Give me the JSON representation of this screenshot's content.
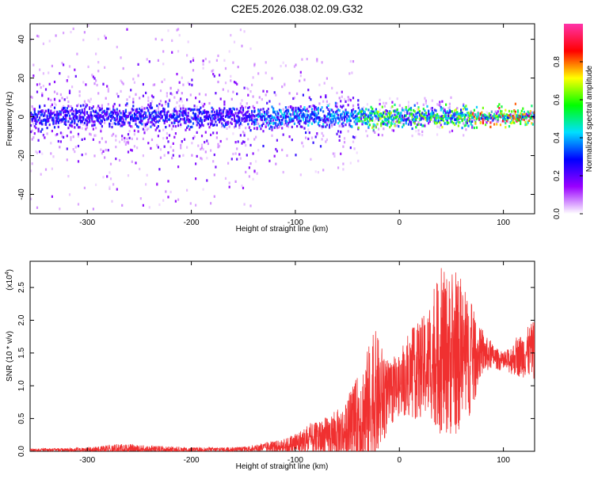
{
  "title": "C2E5.2026.038.02.09.G32",
  "chart_data": [
    {
      "type": "heatmap",
      "xlabel": "Height of straight line (km)",
      "ylabel": "Frequency (Hz)",
      "xlim": [
        -355,
        130
      ],
      "ylim": [
        -50,
        48
      ],
      "x_ticks": [
        -300,
        -200,
        -100,
        0,
        100
      ],
      "x_tick_labels": [
        "-300",
        "-200",
        "-100",
        "0",
        "100"
      ],
      "y_ticks": [
        -40,
        -20,
        0,
        20,
        40
      ],
      "y_tick_labels": [
        "-40",
        "-20",
        "0",
        "20",
        "40"
      ],
      "colorbar": {
        "label": "Normalized spectral amplitude",
        "range": [
          0,
          1
        ],
        "ticks": [
          0.0,
          0.2,
          0.4,
          0.6,
          0.8
        ],
        "tick_labels": [
          "0.0",
          "0.2",
          "0.4",
          "0.6",
          "0.8"
        ],
        "colors": [
          "#ffffff",
          "#9a00ff",
          "#0000ff",
          "#00e0ff",
          "#00ff00",
          "#ffff00",
          "#ff0000",
          "#ff33aa"
        ]
      },
      "segments": [
        {
          "x_range": [
            -355,
            -140
          ],
          "max_amplitude": 0.35,
          "spread_hz": 48
        },
        {
          "x_range": [
            -140,
            -40
          ],
          "max_amplitude": 0.45,
          "spread_hz": 30
        },
        {
          "x_range": [
            -40,
            70
          ],
          "max_amplitude": 0.7,
          "spread_hz": 10
        },
        {
          "x_range": [
            70,
            130
          ],
          "max_amplitude": 0.9,
          "spread_hz": 3
        }
      ]
    },
    {
      "type": "line",
      "xlabel": "Height of straight line (km)",
      "ylabel": "SNR (10 * v/v)",
      "multiplier_label": "(x10",
      "multiplier_exp": "4",
      "multiplier_close": ")",
      "xlim": [
        -355,
        130
      ],
      "ylim": [
        0,
        2.9
      ],
      "x_ticks": [
        -300,
        -200,
        -100,
        0,
        100
      ],
      "x_tick_labels": [
        "-300",
        "-200",
        "-100",
        "0",
        "100"
      ],
      "y_ticks": [
        0.0,
        0.5,
        1.0,
        1.5,
        2.0,
        2.5
      ],
      "y_tick_labels": [
        "0.0",
        "0.5",
        "1.0",
        "1.5",
        "2.0",
        "2.5"
      ],
      "color": "#f03030",
      "envelope": [
        {
          "x": -355,
          "mean": 0.02,
          "max": 0.04
        },
        {
          "x": -300,
          "mean": 0.02,
          "max": 0.06
        },
        {
          "x": -270,
          "mean": 0.03,
          "max": 0.12
        },
        {
          "x": -200,
          "mean": 0.02,
          "max": 0.06
        },
        {
          "x": -150,
          "mean": 0.03,
          "max": 0.07
        },
        {
          "x": -110,
          "mean": 0.08,
          "max": 0.2
        },
        {
          "x": -90,
          "mean": 0.15,
          "max": 0.4
        },
        {
          "x": -70,
          "mean": 0.2,
          "max": 0.55
        },
        {
          "x": -50,
          "mean": 0.3,
          "max": 0.8
        },
        {
          "x": -30,
          "mean": 0.6,
          "max": 1.7
        },
        {
          "x": -25,
          "mean": 0.8,
          "max": 2.05
        },
        {
          "x": -10,
          "mean": 0.85,
          "max": 1.4
        },
        {
          "x": 0,
          "mean": 1.0,
          "max": 1.5
        },
        {
          "x": 15,
          "mean": 1.2,
          "max": 2.0
        },
        {
          "x": 30,
          "mean": 1.35,
          "max": 2.3
        },
        {
          "x": 40,
          "mean": 1.5,
          "max": 2.9
        },
        {
          "x": 55,
          "mean": 1.45,
          "max": 2.8
        },
        {
          "x": 70,
          "mean": 1.4,
          "max": 2.3
        },
        {
          "x": 78,
          "mean": 1.5,
          "max": 1.9
        },
        {
          "x": 90,
          "mean": 1.45,
          "max": 1.65
        },
        {
          "x": 100,
          "mean": 1.35,
          "max": 1.5
        },
        {
          "x": 115,
          "mean": 1.45,
          "max": 1.8
        },
        {
          "x": 130,
          "mean": 1.55,
          "max": 2.05
        }
      ]
    }
  ]
}
